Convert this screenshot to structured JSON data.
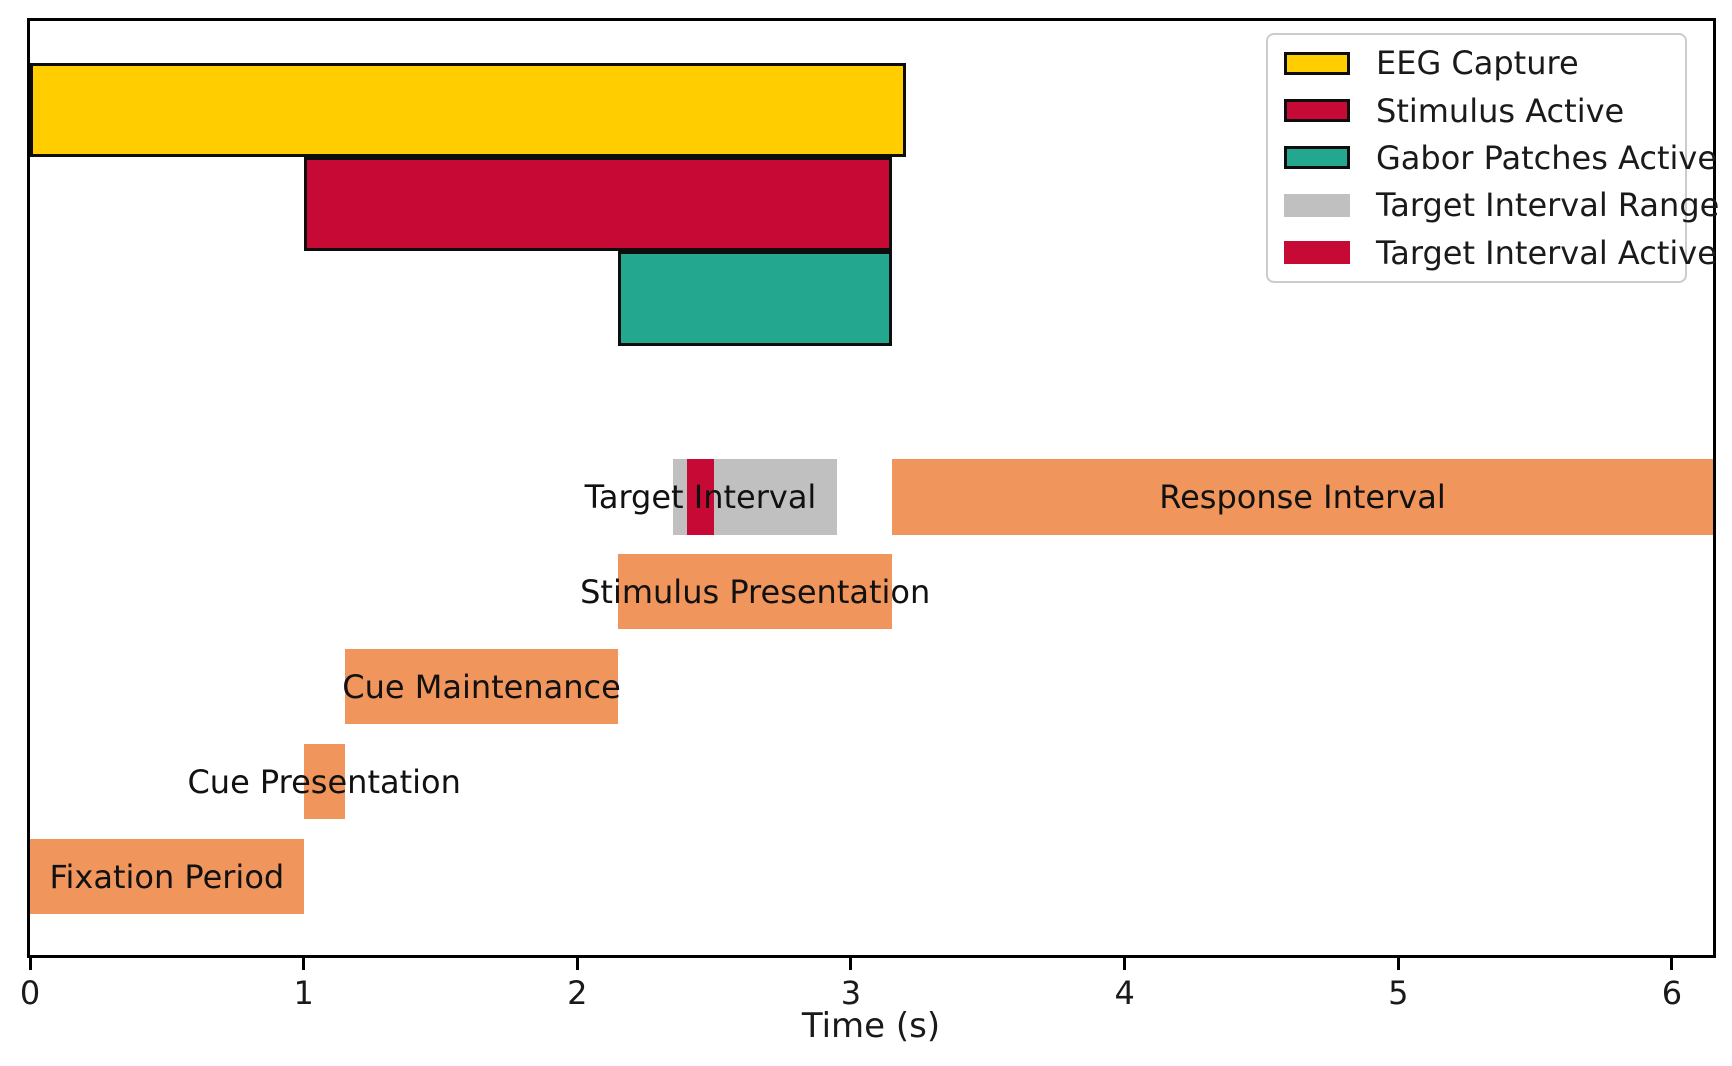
{
  "chart_data": {
    "type": "bar",
    "variant": "gantt-timeline",
    "title": "",
    "xlabel": "Time (s)",
    "ylabel": "",
    "xlim": [
      0,
      6.15
    ],
    "xticks": [
      0,
      1,
      2,
      3,
      4,
      5,
      6
    ],
    "grid": false,
    "legend_position": "upper right",
    "colors": {
      "eeg_gold": "#FFCD00",
      "stimulus_crimson": "#C60A35",
      "gabor_teal": "#23A78F",
      "phase_orange": "#F0965C",
      "range_gray": "#C0C0C0",
      "edge_black": "#0d0d0d"
    },
    "bars": [
      {
        "label": "EEG Capture",
        "track": 0,
        "start": 0,
        "end": 3.2,
        "color": "#FFCD00",
        "edge": true,
        "text": null,
        "text_t": null
      },
      {
        "label": "Stimulus Active",
        "track": 1,
        "start": 1.0,
        "end": 3.15,
        "color": "#C60A35",
        "edge": true,
        "text": null,
        "text_t": null
      },
      {
        "label": "Gabor Patches Active",
        "track": 2,
        "start": 2.15,
        "end": 3.15,
        "color": "#23A78F",
        "edge": true,
        "text": null,
        "text_t": null
      },
      {
        "label": "Target Interval Range",
        "track": 3,
        "start": 2.35,
        "end": 2.95,
        "color": "#C0C0C0",
        "edge": false,
        "text": "Target Interval",
        "text_t": 2.45
      },
      {
        "label": "Target Interval Active",
        "track": 3,
        "start": 2.4,
        "end": 2.5,
        "color": "#C60A35",
        "edge": false,
        "text": null,
        "text_t": null
      },
      {
        "label": "Response Interval",
        "track": 3,
        "start": 3.15,
        "end": 6.15,
        "color": "#F0965C",
        "edge": false,
        "text": "Response Interval",
        "text_t": 4.65
      },
      {
        "label": "Stimulus Presentation",
        "track": 4,
        "start": 2.15,
        "end": 3.15,
        "color": "#F0965C",
        "edge": false,
        "text": "Stimulus Presentation",
        "text_t": 2.65
      },
      {
        "label": "Cue Maintenance",
        "track": 5,
        "start": 1.15,
        "end": 2.15,
        "color": "#F0965C",
        "edge": false,
        "text": "Cue Maintenance",
        "text_t": 1.65
      },
      {
        "label": "Cue Presentation",
        "track": 6,
        "start": 1.0,
        "end": 1.15,
        "color": "#F0965C",
        "edge": false,
        "text": "Cue Presentation",
        "text_t": 1.075
      },
      {
        "label": "Fixation Period",
        "track": 7,
        "start": 0,
        "end": 1.0,
        "color": "#F0965C",
        "edge": false,
        "text": "Fixation Period",
        "text_t": 0.5
      }
    ],
    "legend": [
      {
        "label": "EEG Capture",
        "color": "#FFCD00",
        "edge": true
      },
      {
        "label": "Stimulus Active",
        "color": "#C60A35",
        "edge": true
      },
      {
        "label": "Gabor Patches Active",
        "color": "#23A78F",
        "edge": true
      },
      {
        "label": "Target Interval Range",
        "color": "#C0C0C0",
        "edge": false
      },
      {
        "label": "Target Interval Active",
        "color": "#C60A35",
        "edge": false
      }
    ]
  }
}
